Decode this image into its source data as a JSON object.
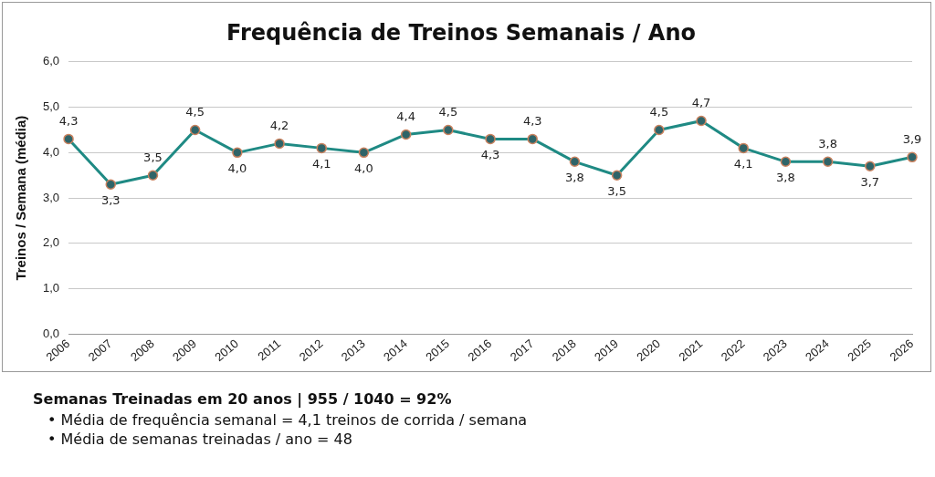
{
  "chart_data": {
    "type": "line",
    "title": "Frequência de Treinos Semanais / Ano",
    "ylabel": "Treinos / Semana (média)",
    "categories": [
      "2006",
      "2007",
      "2008",
      "2009",
      "2010",
      "2011",
      "2012",
      "2013",
      "2014",
      "2015",
      "2016",
      "2017",
      "2018",
      "2019",
      "2020",
      "2021",
      "2022",
      "2023",
      "2024",
      "2025",
      "2026"
    ],
    "series": [
      {
        "color": "#1f8a84",
        "values": [
          4.3,
          3.3,
          3.5,
          4.5,
          4.0,
          4.2,
          4.1,
          4.0,
          4.4,
          4.5,
          4.3,
          4.3,
          3.8,
          3.5,
          4.5,
          4.7,
          4.1,
          3.8,
          3.8,
          3.7,
          3.9
        ],
        "value_labels": [
          "4,3",
          "3,3",
          "3,5",
          "4,5",
          "4,0",
          "4,2",
          "4,1",
          "4,0",
          "4,4",
          "4,5",
          "4,3",
          "4,3",
          "3,8",
          "3,5",
          "4,5",
          "4,7",
          "4,1",
          "3,8",
          "3,8",
          "3,7",
          "3,9"
        ]
      }
    ],
    "ylim": [
      0,
      6
    ],
    "yticks": [
      {
        "value": 0,
        "label": "0,0"
      },
      {
        "value": 1,
        "label": "1,0"
      },
      {
        "value": 2,
        "label": "2,0"
      },
      {
        "value": 3,
        "label": "3,0"
      },
      {
        "value": 4,
        "label": "4,0"
      },
      {
        "value": 5,
        "label": "5,0"
      },
      {
        "value": 6,
        "label": "6,0"
      }
    ],
    "grid": "y",
    "legend": false,
    "marker": "circle",
    "line_style": "solid",
    "annotations": [
      "Semanas Treinadas em 20 anos | 955 / 1040 = 92%",
      "• Média de frequência semanal = 4,1 treinos de corrida / semana",
      "• Média de semanas treinadas / ano = 48"
    ]
  }
}
